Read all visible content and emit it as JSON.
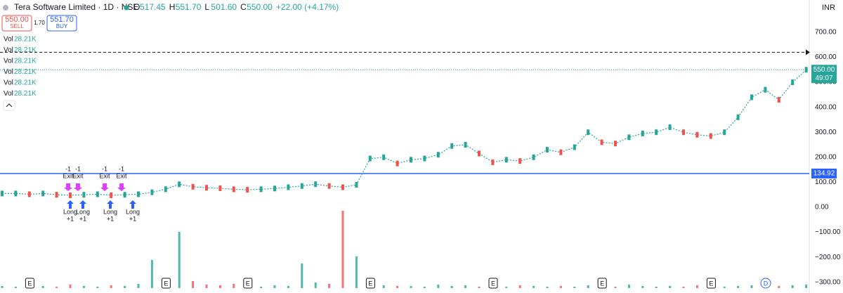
{
  "header": {
    "symbol": "Tera Software Limited · 1D · NSE",
    "ohlc": [
      {
        "k": "O",
        "v": "517.45"
      },
      {
        "k": "H",
        "v": "551.70"
      },
      {
        "k": "L",
        "v": "501.60"
      },
      {
        "k": "C",
        "v": "550.00"
      }
    ],
    "change": "+22.00 (+4.17%)",
    "sell_price": "550.00",
    "sell": "SELL",
    "spread": "1.70",
    "buy_price": "551.70",
    "buy": "BUY",
    "currency": "INR"
  },
  "indicators": [
    {
      "label": "Vol",
      "value": "28.21K"
    },
    {
      "label": "Vol",
      "value": "28.21K"
    },
    {
      "label": "Vol",
      "value": "28.21K"
    },
    {
      "label": "Vol",
      "value": "28.21K"
    },
    {
      "label": "Vol",
      "value": "28.21K"
    },
    {
      "label": "Vol",
      "value": "28.21K"
    }
  ],
  "trades": {
    "exits": [
      {
        "qty": "-1",
        "label": "Exit"
      },
      {
        "qty": "-1",
        "label": "Exit"
      },
      {
        "qty": "-1",
        "label": "Exit"
      },
      {
        "qty": "-1",
        "label": "Exit"
      }
    ],
    "entries": [
      {
        "label": "Long",
        "qty": "+1"
      },
      {
        "label": "Long",
        "qty": "+1"
      },
      {
        "label": "Long",
        "qty": "+1"
      },
      {
        "label": "Long",
        "qty": "+1"
      }
    ]
  },
  "chart_data": {
    "type": "line",
    "categories": [
      null,
      "E",
      null,
      null,
      null,
      null,
      null,
      null,
      null,
      null,
      null,
      "E",
      null,
      null,
      null,
      null,
      null,
      "E",
      null,
      null,
      null,
      null,
      null,
      null,
      null,
      null,
      "E",
      null,
      null,
      null,
      null,
      null,
      null,
      null,
      null,
      "E",
      null,
      null,
      null,
      null,
      null,
      null,
      null,
      "E",
      null,
      null,
      null,
      null,
      null,
      null,
      null,
      "E",
      null,
      null,
      null,
      "D",
      null,
      null,
      null,
      null
    ],
    "series": [
      {
        "name": "Price",
        "color": "#26a69a",
        "values": [
          55,
          55,
          52,
          55,
          50,
          48,
          50,
          52,
          48,
          50,
          52,
          60,
          72,
          92,
          82,
          78,
          76,
          72,
          70,
          72,
          75,
          80,
          85,
          92,
          85,
          80,
          90,
          195,
          200,
          175,
          190,
          195,
          210,
          245,
          250,
          215,
          180,
          190,
          185,
          200,
          230,
          220,
          240,
          300,
          260,
          255,
          280,
          295,
          300,
          320,
          300,
          290,
          285,
          300,
          360,
          440,
          470,
          430,
          500,
          550
        ]
      }
    ],
    "volume": {
      "values": [
        3,
        2,
        4,
        3,
        2,
        5,
        3,
        2,
        4,
        3,
        6,
        40,
        8,
        80,
        10,
        5,
        4,
        6,
        3,
        2,
        4,
        3,
        35,
        8,
        6,
        110,
        45,
        6,
        4,
        3,
        3,
        2,
        5,
        3,
        4,
        2,
        3,
        2,
        4,
        3,
        2,
        3,
        2,
        4,
        3,
        2,
        5,
        3,
        2,
        3,
        2,
        4,
        3,
        2,
        3,
        4,
        2,
        3,
        4,
        5
      ],
      "ylim": [
        0,
        120
      ],
      "up_color": "#26a69a",
      "down_color": "#ef5350"
    },
    "ylim": [
      -343,
      829
    ],
    "yticks": [
      {
        "value": 700,
        "label": "700.00"
      },
      {
        "value": 600,
        "label": "600.00"
      },
      {
        "value": 500,
        "label": "500.00"
      },
      {
        "value": 400,
        "label": "400.00"
      },
      {
        "value": 300,
        "label": "300.00"
      },
      {
        "value": 200,
        "label": "200.00"
      },
      {
        "value": 100,
        "label": "100.00"
      },
      {
        "value": 0,
        "label": "0.00"
      },
      {
        "value": -100,
        "label": "−100.00"
      },
      {
        "value": -200,
        "label": "−200.00"
      },
      {
        "value": -300,
        "label": "−300.00"
      }
    ],
    "last_price": {
      "value": 550,
      "label": "550.00",
      "timer": "49:07",
      "color": "#26a69a"
    },
    "price_line": {
      "value": 134.92,
      "label": "134.92",
      "color": "#2962ff"
    },
    "alert_line": 620
  }
}
